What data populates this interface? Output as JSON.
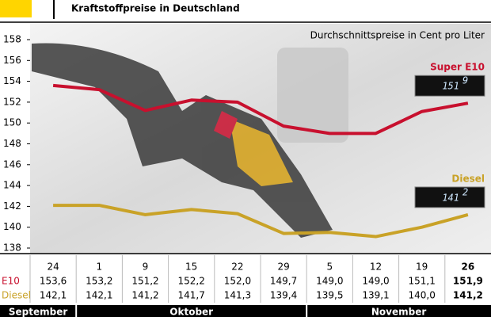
{
  "chart_data": {
    "type": "line",
    "title": "Kraftstoffpreise in Deutschland",
    "subtitle": "Durchschnittspreise in Cent pro Liter",
    "categories": [
      "24",
      "1",
      "9",
      "15",
      "22",
      "29",
      "5",
      "12",
      "19",
      "26"
    ],
    "months": [
      "September",
      "Oktober",
      "November"
    ],
    "series": [
      {
        "name": "Super E10",
        "row_label": "E10",
        "color": "#c8102e",
        "display_main": "151",
        "display_sup": "9",
        "values": [
          153.6,
          153.2,
          151.2,
          152.2,
          152.0,
          149.7,
          149.0,
          149.0,
          151.1,
          151.9
        ],
        "value_labels": [
          "153,6",
          "153,2",
          "151,2",
          "152,2",
          "152,0",
          "149,7",
          "149,0",
          "149,0",
          "151,1",
          "151,9"
        ]
      },
      {
        "name": "Diesel",
        "row_label": "Diesel",
        "color": "#c9a227",
        "display_main": "141",
        "display_sup": "2",
        "values": [
          142.1,
          142.1,
          141.2,
          141.7,
          141.3,
          139.4,
          139.5,
          139.1,
          140.0,
          141.2
        ],
        "value_labels": [
          "142,1",
          "142,1",
          "141,2",
          "141,7",
          "141,3",
          "139,4",
          "139,5",
          "139,1",
          "140,0",
          "141,2"
        ]
      }
    ],
    "ylim": [
      138,
      158
    ],
    "yticks": [
      138,
      140,
      142,
      144,
      146,
      148,
      150,
      152,
      154,
      156,
      158
    ],
    "grid": false
  }
}
